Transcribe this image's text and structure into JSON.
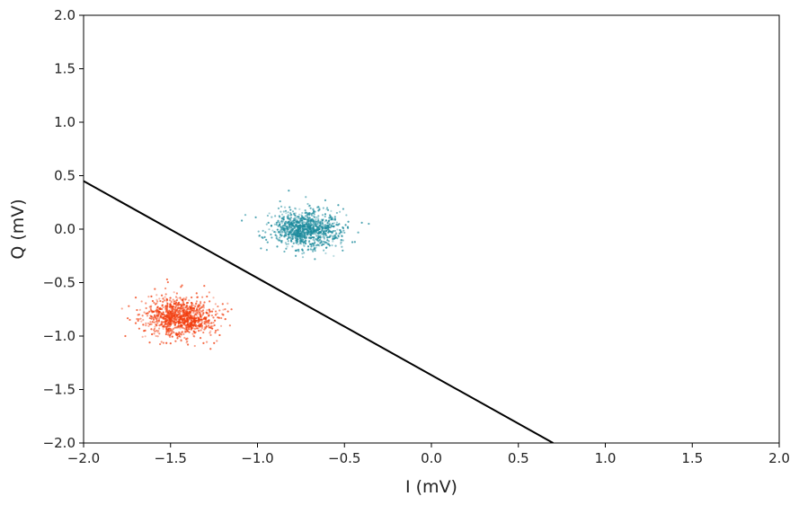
{
  "chart_data": {
    "type": "scatter",
    "title": "",
    "xlabel": "I (mV)",
    "ylabel": "Q (mV)",
    "xlim": [
      -2.0,
      2.0
    ],
    "ylim": [
      -2.0,
      2.0
    ],
    "x_ticks": [
      -2.0,
      -1.5,
      -1.0,
      -0.5,
      0.0,
      0.5,
      1.0,
      1.5,
      2.0
    ],
    "y_ticks": [
      -2.0,
      -1.5,
      -1.0,
      -0.5,
      0.0,
      0.5,
      1.0,
      1.5,
      2.0
    ],
    "x_tick_labels": [
      "−2.0",
      "−1.5",
      "−1.0",
      "−0.5",
      "0.0",
      "0.5",
      "1.0",
      "1.5",
      "2.0"
    ],
    "y_tick_labels": [
      "−2.0",
      "−1.5",
      "−1.0",
      "−0.5",
      "0.0",
      "0.5",
      "1.0",
      "1.5",
      "2.0"
    ],
    "grid": false,
    "legend": "none",
    "series": [
      {
        "color": "#1b8a9c",
        "cluster_center": [
          -0.72,
          0.0
        ],
        "spread_std": [
          0.1,
          0.085
        ],
        "approx_point_count": 1000,
        "values": [
          [
            -0.72,
            0.0
          ],
          [
            -0.8,
            0.05
          ],
          [
            -0.65,
            -0.04
          ],
          [
            -0.75,
            0.1
          ],
          [
            -0.68,
            0.08
          ],
          [
            -0.86,
            -0.06
          ],
          [
            -0.6,
            0.02
          ],
          [
            -0.77,
            -0.12
          ],
          [
            -0.7,
            0.15
          ],
          [
            -0.55,
            -0.08
          ],
          [
            -0.92,
            0.03
          ],
          [
            -0.63,
            -0.15
          ],
          [
            -0.81,
            0.18
          ],
          [
            -0.74,
            -0.2
          ],
          [
            -0.58,
            0.12
          ],
          [
            -0.95,
            -0.1
          ],
          [
            -0.48,
            0.01
          ],
          [
            -1.01,
            0.11
          ],
          [
            -0.4,
            0.06
          ],
          [
            -0.87,
            0.26
          ],
          [
            -0.67,
            -0.28
          ],
          [
            -0.82,
            0.36
          ],
          [
            -1.09,
            0.08
          ],
          [
            -0.36,
            0.05
          ],
          [
            -0.7,
            0.22
          ],
          [
            -0.78,
            -0.25
          ],
          [
            -0.51,
            -0.2
          ],
          [
            -0.98,
            -0.18
          ],
          [
            -0.61,
            0.27
          ],
          [
            -0.44,
            -0.12
          ]
        ]
      },
      {
        "color": "#f23d0e",
        "cluster_center": [
          -1.45,
          -0.82
        ],
        "spread_std": [
          0.1,
          0.09
        ],
        "approx_point_count": 1000,
        "values": [
          [
            -1.45,
            -0.82
          ],
          [
            -1.52,
            -0.76
          ],
          [
            -1.38,
            -0.88
          ],
          [
            -1.48,
            -0.7
          ],
          [
            -1.4,
            -0.74
          ],
          [
            -1.58,
            -0.9
          ],
          [
            -1.33,
            -0.8
          ],
          [
            -1.5,
            -0.95
          ],
          [
            -1.43,
            -0.66
          ],
          [
            -1.28,
            -0.86
          ],
          [
            -1.64,
            -0.79
          ],
          [
            -1.36,
            -0.97
          ],
          [
            -1.55,
            -0.62
          ],
          [
            -1.46,
            -1.02
          ],
          [
            -1.31,
            -0.71
          ],
          [
            -1.68,
            -0.93
          ],
          [
            -1.22,
            -0.83
          ],
          [
            -1.74,
            -0.72
          ],
          [
            -1.17,
            -0.77
          ],
          [
            -1.59,
            -0.56
          ],
          [
            -1.4,
            -1.08
          ],
          [
            -1.52,
            -0.47
          ],
          [
            -1.76,
            -1.0
          ],
          [
            -1.24,
            -0.95
          ],
          [
            -1.35,
            -0.6
          ],
          [
            -1.62,
            -1.06
          ],
          [
            -1.27,
            -1.12
          ],
          [
            -1.7,
            -0.64
          ],
          [
            -1.44,
            -0.54
          ],
          [
            -1.2,
            -0.7
          ]
        ]
      }
    ],
    "decision_line": {
      "color": "#000000",
      "points": [
        [
          -2.0,
          0.45
        ],
        [
          0.7,
          -2.0
        ]
      ]
    }
  }
}
